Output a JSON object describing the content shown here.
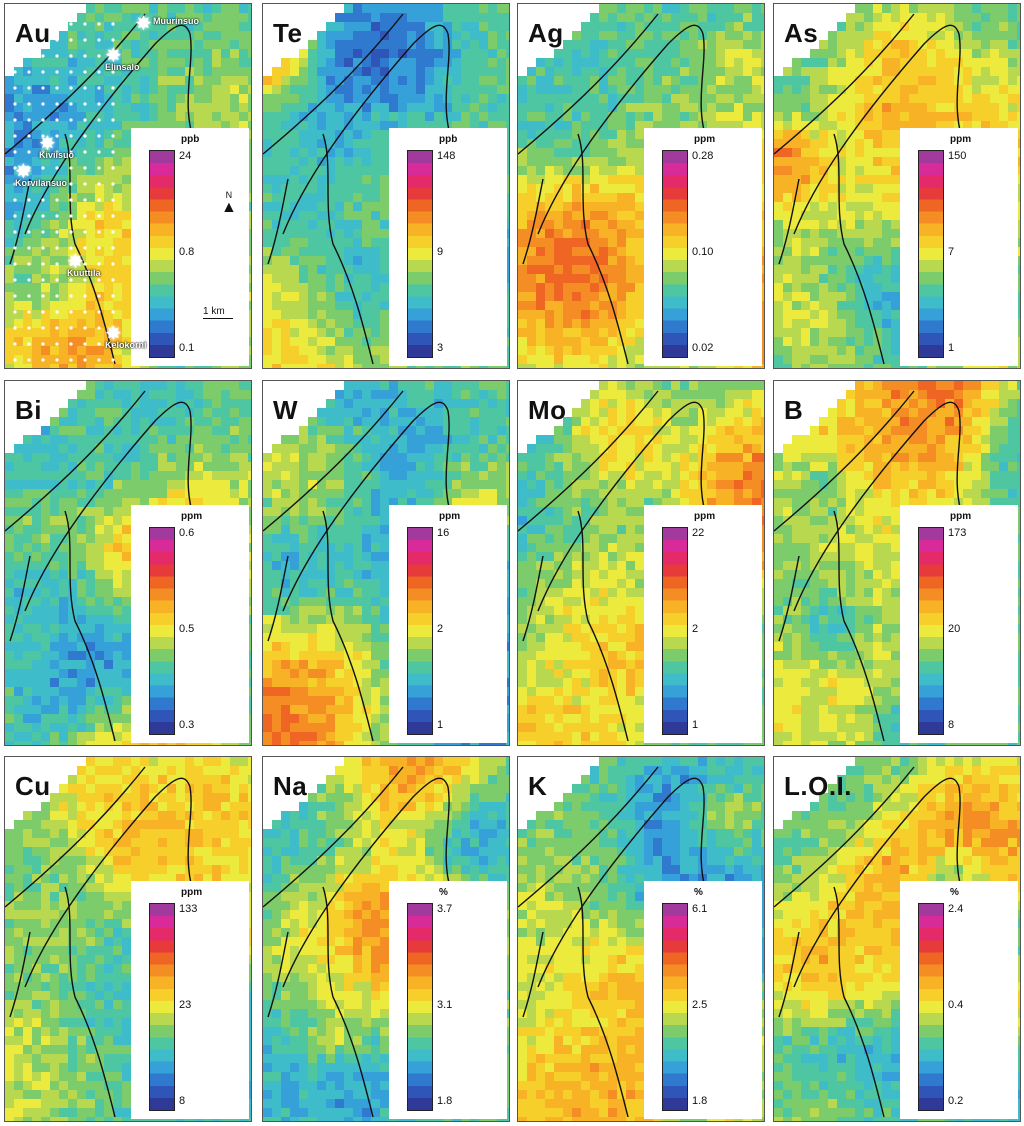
{
  "panels": [
    {
      "element": "Au",
      "unit": "ppb",
      "ticks": [
        "24",
        "0.8",
        "0.1"
      ],
      "seed": 11
    },
    {
      "element": "Te",
      "unit": "ppb",
      "ticks": [
        "148",
        "9",
        "3"
      ],
      "seed": 23
    },
    {
      "element": "Ag",
      "unit": "ppm",
      "ticks": [
        "0.28",
        "0.10",
        "0.02"
      ],
      "seed": 37
    },
    {
      "element": "As",
      "unit": "ppm",
      "ticks": [
        "150",
        "7",
        "1"
      ],
      "seed": 41
    },
    {
      "element": "Bi",
      "unit": "ppm",
      "ticks": [
        "0.6",
        "0.5",
        "0.3"
      ],
      "seed": 53
    },
    {
      "element": "W",
      "unit": "ppm",
      "ticks": [
        "16",
        "2",
        "1"
      ],
      "seed": 67
    },
    {
      "element": "Mo",
      "unit": "ppm",
      "ticks": [
        "22",
        "2",
        "1"
      ],
      "seed": 71
    },
    {
      "element": "B",
      "unit": "ppm",
      "ticks": [
        "173",
        "20",
        "8"
      ],
      "seed": 83
    },
    {
      "element": "Cu",
      "unit": "ppm",
      "ticks": [
        "133",
        "23",
        "8"
      ],
      "seed": 97
    },
    {
      "element": "Na",
      "unit": "%",
      "ticks": [
        "3.7",
        "3.1",
        "1.8"
      ],
      "seed": 101
    },
    {
      "element": "K",
      "unit": "%",
      "ticks": [
        "6.1",
        "2.5",
        "1.8"
      ],
      "seed": 113
    },
    {
      "element": "L.O.I.",
      "unit": "%",
      "ticks": [
        "2.4",
        "0.4",
        "0.2"
      ],
      "seed": 127
    }
  ],
  "au_sites": [
    "Muurinsuo",
    "Elinsalo",
    "Kiviisuo",
    "Korvilansuo",
    "Kuuttila",
    "Kelokorni"
  ],
  "north_label": "N",
  "scale_label": "1 km",
  "colorscale": [
    "#2f3a98",
    "#2f55b8",
    "#2f79cf",
    "#36a0d8",
    "#3fbcc9",
    "#4fc6a2",
    "#7dcc6b",
    "#b8d850",
    "#ecea3c",
    "#f7cf2a",
    "#f8b225",
    "#f58d25",
    "#ef6524",
    "#e63b3a",
    "#e52a6a",
    "#d92a9a",
    "#a23a9e"
  ]
}
